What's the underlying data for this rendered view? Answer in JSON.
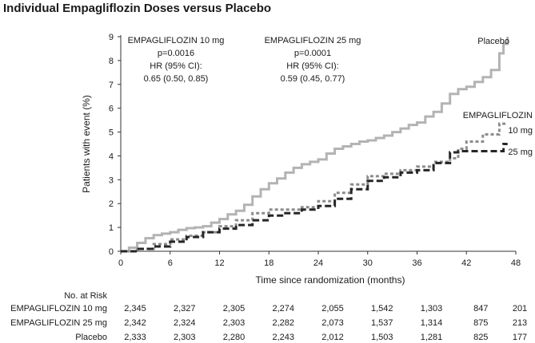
{
  "chart_data": {
    "type": "line",
    "title": "Individual Empagliflozin Doses versus Placebo",
    "xlabel": "Time since randomization (months)",
    "ylabel": "Patients with event (%)",
    "xlim": [
      0,
      48
    ],
    "ylim": [
      0,
      9
    ],
    "xticks": [
      0,
      6,
      12,
      18,
      24,
      30,
      36,
      42,
      48
    ],
    "yticks": [
      0,
      1,
      2,
      3,
      4,
      5,
      6,
      7,
      8,
      9
    ],
    "grid": false,
    "series": [
      {
        "name": "Placebo",
        "color": "#b3b3b3",
        "dash": "solid",
        "x": [
          0,
          1,
          2,
          3,
          4,
          5,
          6,
          7,
          8,
          9,
          10,
          11,
          12,
          13,
          14,
          15,
          16,
          17,
          18,
          19,
          20,
          21,
          22,
          23,
          24,
          25,
          26,
          27,
          28,
          29,
          30,
          31,
          32,
          33,
          34,
          35,
          36,
          37,
          38,
          39,
          40,
          41,
          42,
          43,
          44,
          45,
          46,
          46.5,
          47
        ],
        "y": [
          0,
          0.15,
          0.35,
          0.55,
          0.68,
          0.74,
          0.8,
          0.9,
          0.97,
          1.0,
          1.05,
          1.2,
          1.35,
          1.55,
          1.7,
          1.95,
          2.3,
          2.6,
          2.85,
          3.05,
          3.3,
          3.5,
          3.65,
          3.75,
          3.85,
          4.1,
          4.3,
          4.4,
          4.5,
          4.6,
          4.65,
          4.75,
          4.85,
          5.0,
          5.15,
          5.3,
          5.4,
          5.65,
          5.85,
          6.2,
          6.6,
          6.8,
          6.9,
          7.1,
          7.3,
          7.6,
          8.3,
          8.7,
          9.0
        ]
      },
      {
        "name": "10 mg",
        "color": "#8c8c8c",
        "dash": "dot",
        "x": [
          0,
          2,
          4,
          6,
          8,
          10,
          12,
          14,
          16,
          18,
          20,
          22,
          24,
          26,
          28,
          30,
          32,
          34,
          36,
          38,
          40,
          41,
          42,
          44,
          46,
          47
        ],
        "y": [
          0,
          0.1,
          0.3,
          0.5,
          0.65,
          0.8,
          1.05,
          1.3,
          1.6,
          1.75,
          1.75,
          1.85,
          2.1,
          2.45,
          2.8,
          3.15,
          3.25,
          3.4,
          3.55,
          3.75,
          3.9,
          4.3,
          4.6,
          4.9,
          5.35,
          5.35
        ]
      },
      {
        "name": "25 mg",
        "color": "#262626",
        "dash": "dash",
        "x": [
          0,
          2,
          4,
          6,
          8,
          10,
          12,
          14,
          16,
          18,
          20,
          22,
          24,
          26,
          28,
          30,
          32,
          34,
          36,
          38,
          40,
          41,
          42,
          44,
          46,
          46.5,
          47
        ],
        "y": [
          0,
          0.1,
          0.2,
          0.4,
          0.6,
          0.8,
          0.95,
          1.1,
          1.3,
          1.5,
          1.6,
          1.75,
          1.9,
          2.2,
          2.6,
          2.95,
          3.1,
          3.3,
          3.4,
          3.7,
          4.15,
          4.2,
          4.2,
          4.2,
          4.2,
          4.5,
          4.5
        ]
      }
    ],
    "annotations": {
      "stats_10mg": [
        "EMPAGLIFLOZIN 10 mg",
        "p=0.0016",
        "HR (95% CI):",
        "0.65 (0.50, 0.85)"
      ],
      "stats_25mg": [
        "EMPAGLIFLOZIN 25 mg",
        "p=0.0001",
        "HR (95% CI):",
        "0.59 (0.45, 0.77)"
      ],
      "label_placebo": "Placebo",
      "label_empagliflozin": "EMPAGLIFLOZIN",
      "label_10mg": "10 mg",
      "label_25mg": "25 mg"
    }
  },
  "risk_table": {
    "header": "No. at Risk",
    "time_points": [
      0,
      6,
      12,
      18,
      24,
      30,
      36,
      42,
      48
    ],
    "rows": [
      {
        "label": "EMPAGLIFLOZIN 10 mg",
        "values": [
          "2,345",
          "2,327",
          "2,305",
          "2,274",
          "2,055",
          "1,542",
          "1,303",
          "847",
          "201"
        ]
      },
      {
        "label": "EMPAGLIFLOZIN 25 mg",
        "values": [
          "2,342",
          "2,324",
          "2,303",
          "2,282",
          "2,073",
          "1,537",
          "1,314",
          "875",
          "213"
        ]
      },
      {
        "label": "Placebo",
        "values": [
          "2,333",
          "2,303",
          "2,280",
          "2,243",
          "2,012",
          "1,503",
          "1,281",
          "825",
          "177"
        ]
      }
    ]
  }
}
